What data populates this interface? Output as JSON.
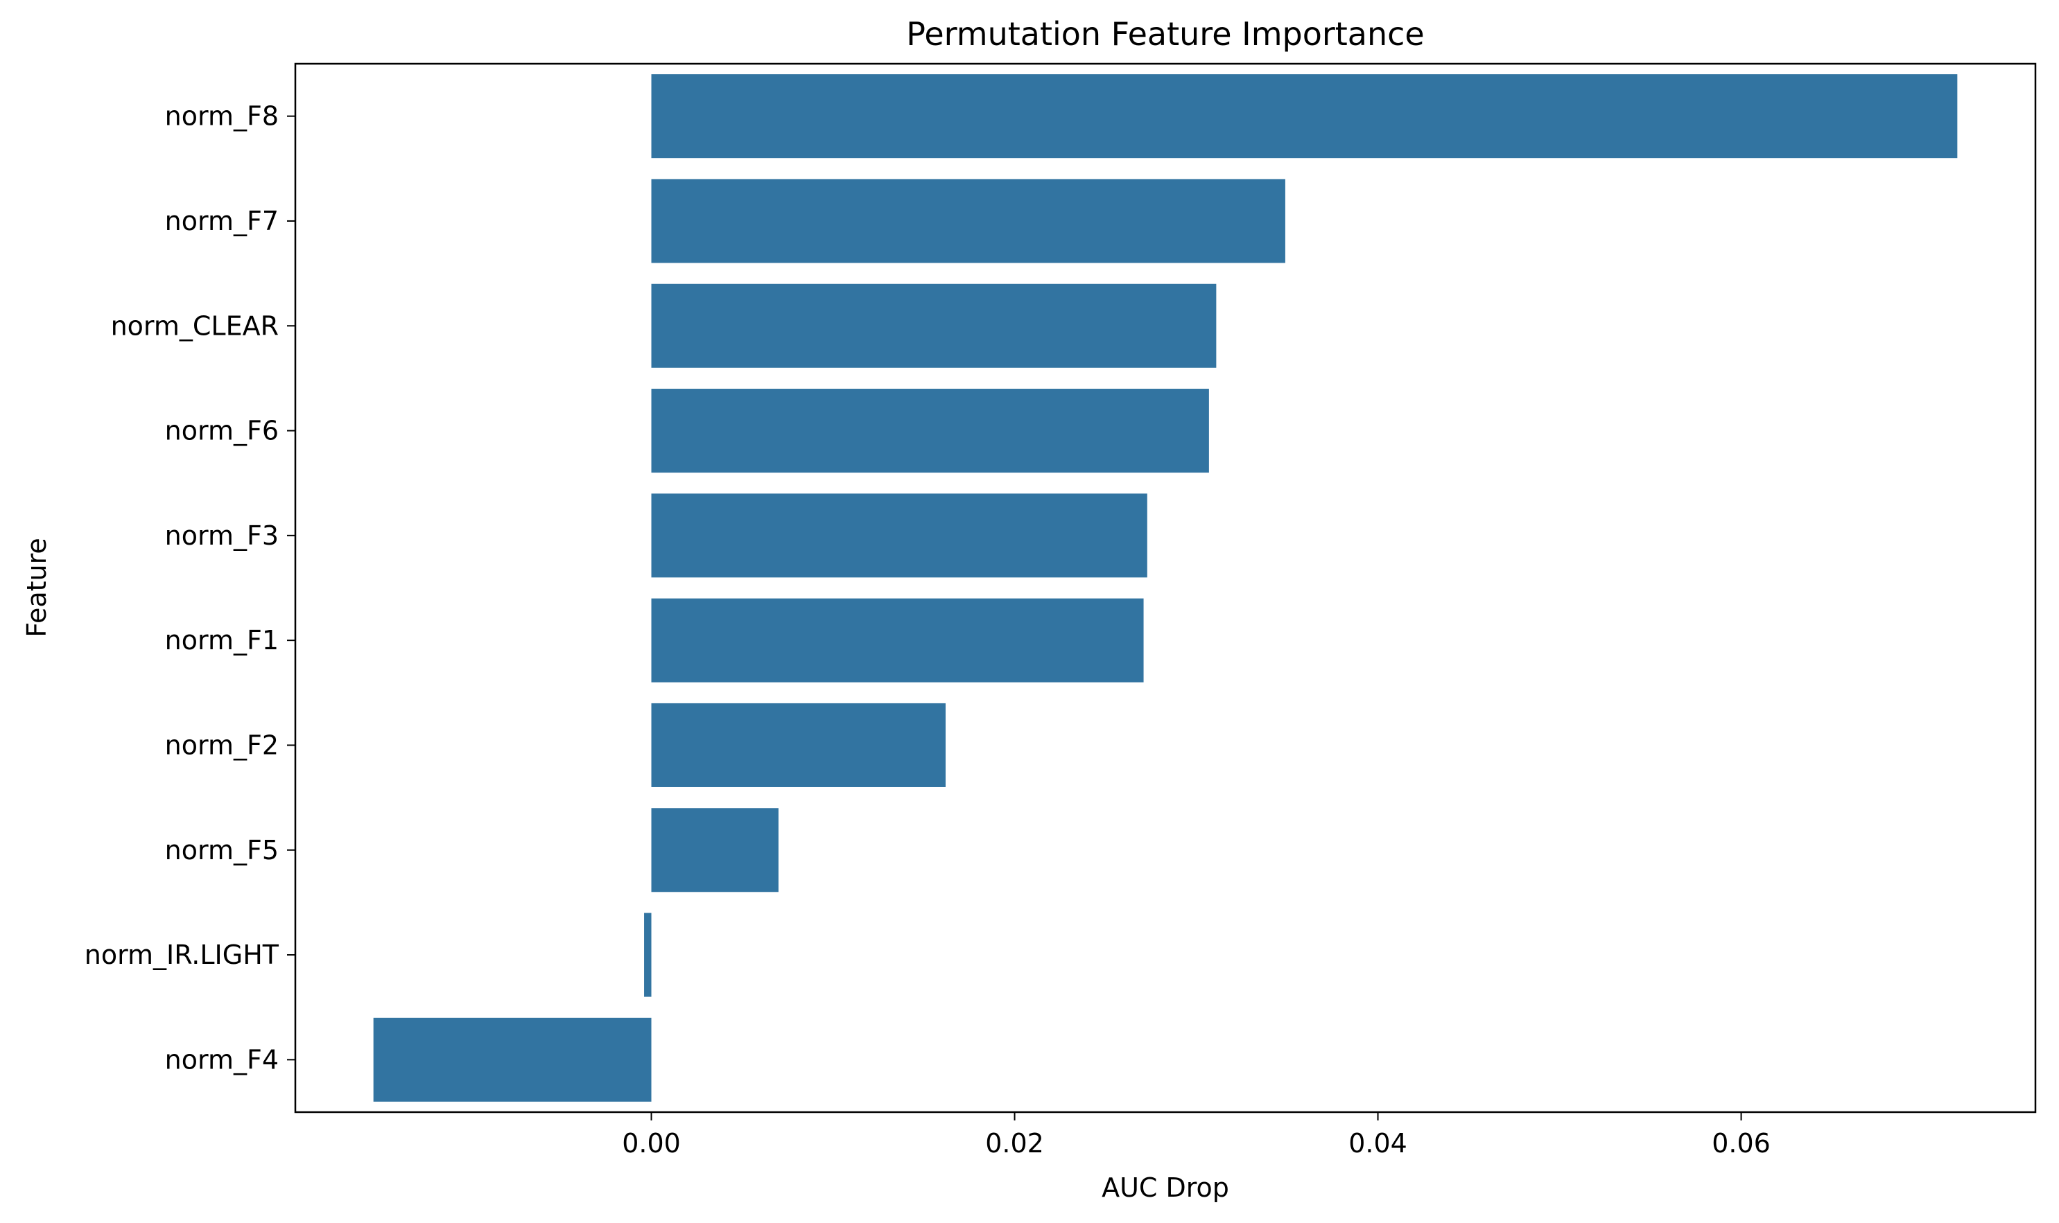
{
  "chart_data": {
    "type": "bar",
    "orientation": "horizontal",
    "title": "Permutation Feature Importance",
    "xlabel": "AUC Drop",
    "ylabel": "Feature",
    "categories": [
      "norm_F8",
      "norm_F7",
      "norm_CLEAR",
      "norm_F6",
      "norm_F3",
      "norm_F1",
      "norm_F2",
      "norm_F5",
      "norm_IR.LIGHT",
      "norm_F4"
    ],
    "values": [
      0.0719,
      0.0349,
      0.0311,
      0.0307,
      0.0273,
      0.0271,
      0.0162,
      0.007,
      -0.0004,
      -0.0153
    ],
    "xlim": [
      -0.0196,
      0.0762
    ],
    "xticks": [
      0.0,
      0.02,
      0.04,
      0.06
    ],
    "xtick_labels": [
      "0.00",
      "0.02",
      "0.04",
      "0.06"
    ],
    "bar_color": "#3274a1",
    "grid": false,
    "legend": "none"
  }
}
